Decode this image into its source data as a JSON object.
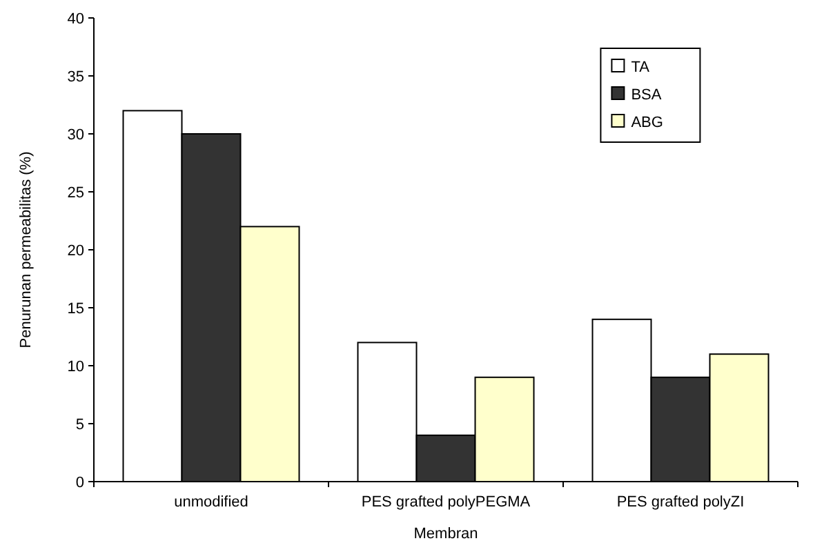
{
  "chart_data": {
    "type": "bar",
    "xlabel": "Membran",
    "ylabel": "Penurunan permeabilitas (%)",
    "categories": [
      "unmodified",
      "PES grafted polyPEGMA",
      "PES grafted polyZI"
    ],
    "series": [
      {
        "name": "TA",
        "color": "#ffffff",
        "values": [
          32,
          12,
          14
        ]
      },
      {
        "name": "BSA",
        "color": "#333333",
        "values": [
          30,
          4,
          9
        ]
      },
      {
        "name": "ABG",
        "color": "#ffffcc",
        "values": [
          22,
          9,
          11
        ]
      }
    ],
    "ylim": [
      0,
      40
    ],
    "yticks": [
      0,
      5,
      10,
      15,
      20,
      25,
      30,
      35,
      40
    ],
    "legend": "top right"
  }
}
